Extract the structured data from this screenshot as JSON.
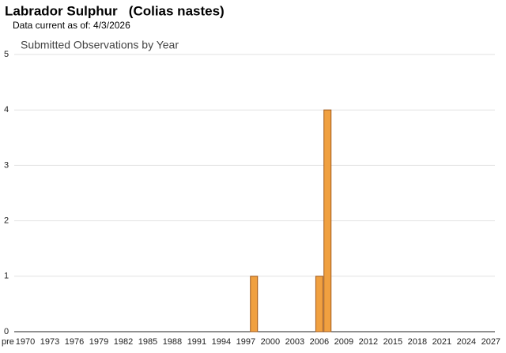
{
  "chart_data": {
    "type": "bar",
    "title": "Labrador Sulphur   (Colias nastes)",
    "subtitle": "Data current as of: 4/3/2026",
    "chart_title": "Submitted Observations by Year",
    "categories": [
      "pre",
      "1970",
      null,
      null,
      "1973",
      null,
      null,
      "1976",
      null,
      null,
      "1979",
      null,
      null,
      "1982",
      null,
      null,
      "1985",
      null,
      null,
      "1988",
      null,
      null,
      "1991",
      null,
      null,
      "1994",
      null,
      null,
      "1997",
      null,
      null,
      "2000",
      null,
      null,
      "2003",
      null,
      null,
      "2006",
      null,
      null,
      "2009",
      null,
      null,
      "2012",
      null,
      null,
      "2015",
      null,
      null,
      "2018",
      null,
      null,
      "2021",
      null,
      null,
      "2024",
      null,
      null,
      "2027"
    ],
    "values": [
      0,
      0,
      0,
      0,
      0,
      0,
      0,
      0,
      0,
      0,
      0,
      0,
      0,
      0,
      0,
      0,
      0,
      0,
      0,
      0,
      0,
      0,
      0,
      0,
      0,
      0,
      0,
      0,
      0,
      1,
      0,
      0,
      0,
      0,
      0,
      0,
      0,
      1,
      4,
      0,
      0,
      0,
      0,
      0,
      0,
      0,
      0,
      0,
      0,
      0,
      0,
      0,
      0,
      0,
      0,
      0,
      0,
      0,
      0
    ],
    "color": "#f0a040",
    "ylim": [
      0,
      5
    ],
    "yticks": [
      0,
      1,
      2,
      3,
      4,
      5
    ],
    "grid": true
  }
}
